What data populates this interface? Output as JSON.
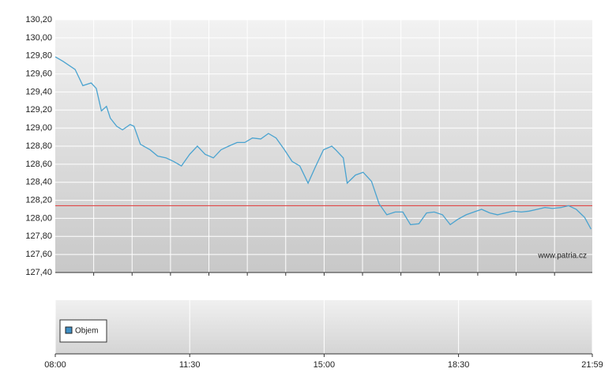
{
  "chart_data": {
    "type": "line",
    "x": [
      0,
      12,
      31,
      43,
      56,
      64,
      72,
      80,
      86,
      96,
      105,
      117,
      123,
      133,
      148,
      160,
      173,
      185,
      197,
      210,
      222,
      234,
      247,
      259,
      271,
      284,
      296,
      308,
      321,
      333,
      345,
      358,
      370,
      382,
      395,
      407,
      419,
      432,
      438,
      450,
      456,
      469,
      481,
      494,
      506,
      518,
      531,
      543,
      555,
      568,
      580,
      592,
      605,
      617,
      629,
      642,
      654,
      666,
      679,
      691,
      703,
      716,
      728,
      740,
      753,
      765,
      777,
      790,
      802,
      814,
      827,
      837
    ],
    "values": [
      129.79,
      129.74,
      129.65,
      129.47,
      129.5,
      129.44,
      129.19,
      129.24,
      129.11,
      129.02,
      128.98,
      129.04,
      129.02,
      128.82,
      128.76,
      128.69,
      128.67,
      128.63,
      128.58,
      128.71,
      128.8,
      128.71,
      128.67,
      128.76,
      128.8,
      128.84,
      128.84,
      128.89,
      128.88,
      128.94,
      128.89,
      128.76,
      128.63,
      128.58,
      128.39,
      128.58,
      128.76,
      128.8,
      128.76,
      128.67,
      128.39,
      128.48,
      128.51,
      128.41,
      128.16,
      128.04,
      128.07,
      128.07,
      127.93,
      127.94,
      128.06,
      128.07,
      128.04,
      127.93,
      127.99,
      128.04,
      128.07,
      128.1,
      128.06,
      128.04,
      128.06,
      128.08,
      128.07,
      128.08,
      128.1,
      128.12,
      128.11,
      128.12,
      128.14,
      128.1,
      128.01,
      127.88
    ],
    "color": "#4aa3d0",
    "reference_line": {
      "value": 128.14,
      "color": "#e04848"
    },
    "xlim": [
      0,
      839
    ],
    "xticks": [
      {
        "value": 0,
        "label": "08:00"
      },
      {
        "value": 210,
        "label": "11:30"
      },
      {
        "value": 420,
        "label": "15:00"
      },
      {
        "value": 630,
        "label": "18:30"
      },
      {
        "value": 839,
        "label": "21:59"
      }
    ],
    "xgrid": [
      60,
      120,
      180,
      240,
      300,
      360,
      420,
      480,
      540,
      600,
      660,
      720,
      780
    ],
    "ylim": [
      127.4,
      130.2
    ],
    "yticks": [
      {
        "value": 127.4,
        "label": "127,40"
      },
      {
        "value": 127.6,
        "label": "127,60"
      },
      {
        "value": 127.8,
        "label": "127,80"
      },
      {
        "value": 128.0,
        "label": "128,00"
      },
      {
        "value": 128.2,
        "label": "128,20"
      },
      {
        "value": 128.4,
        "label": "128,40"
      },
      {
        "value": 128.6,
        "label": "128,60"
      },
      {
        "value": 128.8,
        "label": "128,80"
      },
      {
        "value": 129.0,
        "label": "129,00"
      },
      {
        "value": 129.2,
        "label": "129,20"
      },
      {
        "value": 129.4,
        "label": "129,40"
      },
      {
        "value": 129.6,
        "label": "129,60"
      },
      {
        "value": 129.8,
        "label": "129,80"
      },
      {
        "value": 130.0,
        "label": "130,00"
      },
      {
        "value": 130.2,
        "label": "130,20"
      }
    ],
    "grid": true,
    "volume_legend": {
      "name": "Objem",
      "color": "#3f8fc4"
    },
    "watermark": "www.patria.cz"
  }
}
